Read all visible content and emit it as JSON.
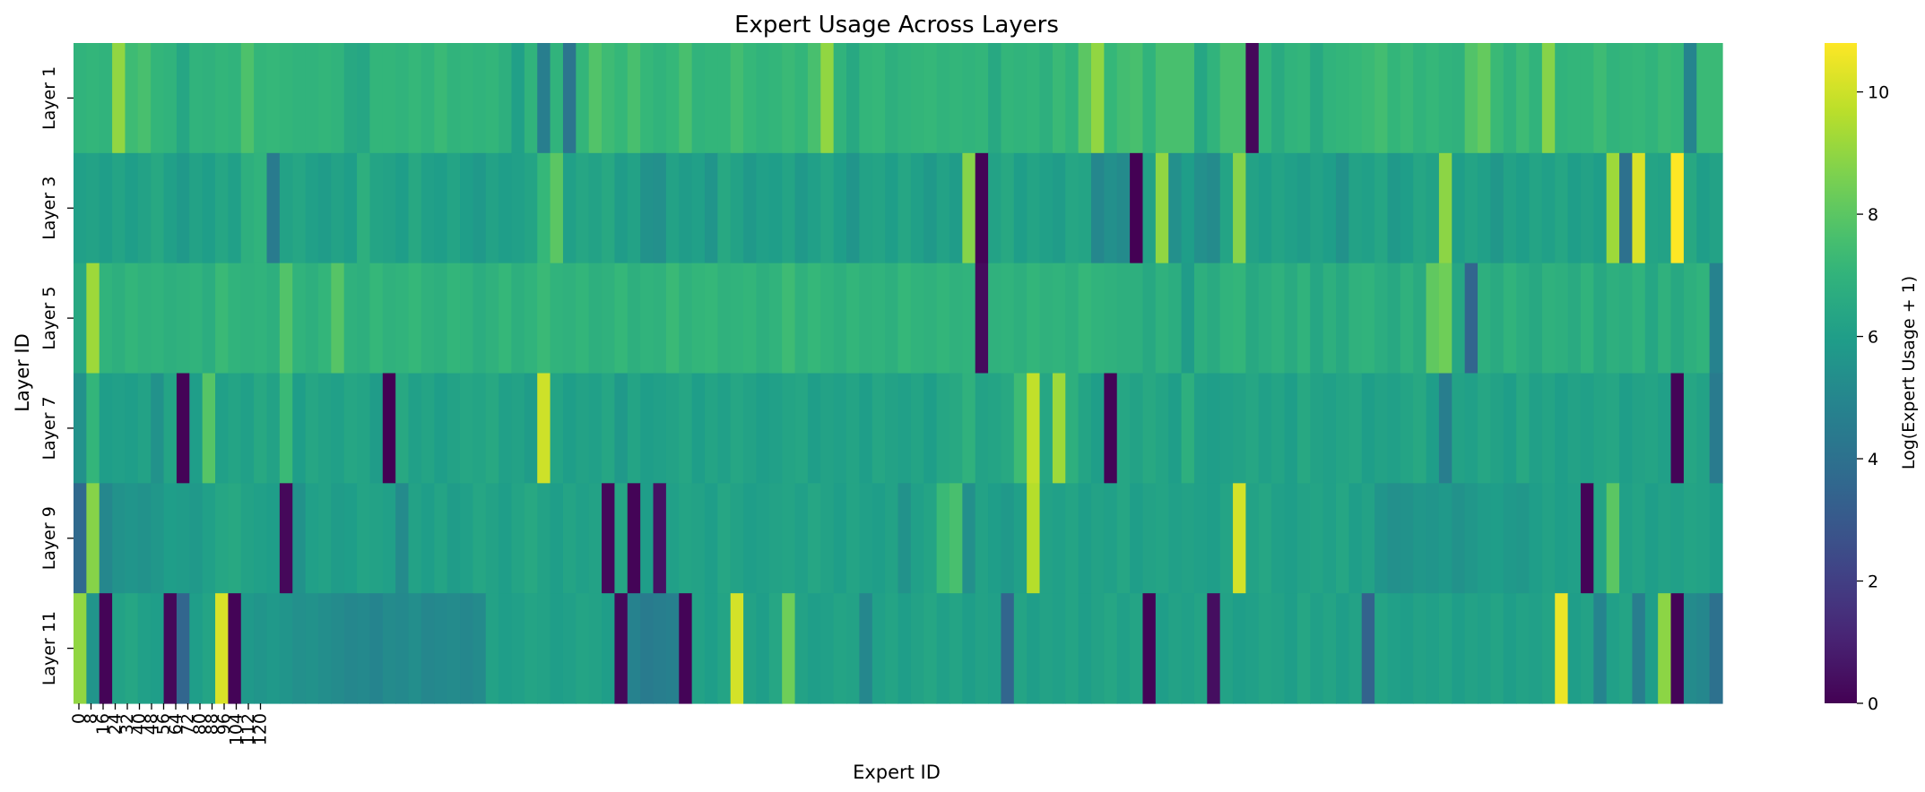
{
  "chart_data": {
    "type": "heatmap",
    "title": "Expert Usage Across Layers",
    "xlabel": "Expert ID",
    "ylabel": "Layer ID",
    "colorbar_label": "Log(Expert Usage + 1)",
    "colormap": "viridis",
    "vmin": 0,
    "vmax": 10.8,
    "colorbar_ticks": [
      0,
      2,
      4,
      6,
      8,
      10
    ],
    "x_tick_labels": [
      "0",
      "8",
      "16",
      "24",
      "32",
      "40",
      "48",
      "56",
      "64",
      "72",
      "80",
      "88",
      "96",
      "104",
      "112",
      "120"
    ],
    "y_tick_labels": [
      "Layer 1",
      "Layer 3",
      "Layer 5",
      "Layer 7",
      "Layer 9",
      "Layer 11"
    ],
    "n_experts": 128,
    "values": [
      [
        7.0,
        7.1,
        7.0,
        9.0,
        7.4,
        7.6,
        7.1,
        7.0,
        6.4,
        7.0,
        6.9,
        7.1,
        7.0,
        7.7,
        7.1,
        7.2,
        7.1,
        7.0,
        7.0,
        7.1,
        7.0,
        6.5,
        6.4,
        7.1,
        7.1,
        7.0,
        7.2,
        7.0,
        7.3,
        7.0,
        7.1,
        7.0,
        7.1,
        6.8,
        6.1,
        7.0,
        4.6,
        7.0,
        4.2,
        7.1,
        7.8,
        7.4,
        7.2,
        7.6,
        7.2,
        7.0,
        7.2,
        7.6,
        7.0,
        7.1,
        7.1,
        7.5,
        7.2,
        7.0,
        7.1,
        7.3,
        7.1,
        7.6,
        9.0,
        7.0,
        6.5,
        7.1,
        7.2,
        6.8,
        7.0,
        7.1,
        7.2,
        7.0,
        7.1,
        7.0,
        7.1,
        6.5,
        7.1,
        7.0,
        7.1,
        6.8,
        7.3,
        7.0,
        8.0,
        9.0,
        7.2,
        7.5,
        7.6,
        7.0,
        7.6,
        7.6,
        7.6,
        6.4,
        7.0,
        7.6,
        7.6,
        0.2,
        7.1,
        6.6,
        7.0,
        7.1,
        6.5,
        7.0,
        7.1,
        7.2,
        7.3,
        7.5,
        7.1,
        7.3,
        7.0,
        7.2,
        7.0,
        6.9,
        7.8,
        8.2,
        7.3,
        6.9,
        7.4,
        7.0,
        8.8,
        7.0,
        7.1,
        7.1,
        7.4,
        7.0,
        7.1,
        7.2,
        7.0,
        7.3,
        7.2,
        4.9,
        7.3,
        7.3
      ],
      [
        6.1,
        6.2,
        6.0,
        6.3,
        6.0,
        6.2,
        6.5,
        6.1,
        5.8,
        6.2,
        6.0,
        6.4,
        6.1,
        6.8,
        7.0,
        4.5,
        6.2,
        6.4,
        6.1,
        5.9,
        6.2,
        6.0,
        6.8,
        6.3,
        6.2,
        6.0,
        6.5,
        6.1,
        6.0,
        6.3,
        6.0,
        5.8,
        6.2,
        6.0,
        6.1,
        6.3,
        7.2,
        8.0,
        6.1,
        6.4,
        6.2,
        6.5,
        5.9,
        6.2,
        5.5,
        5.4,
        6.2,
        5.9,
        6.1,
        5.6,
        6.5,
        6.2,
        5.8,
        6.1,
        6.0,
        6.3,
        5.8,
        6.1,
        6.4,
        6.0,
        5.6,
        6.2,
        6.3,
        6.0,
        6.4,
        6.1,
        5.8,
        6.2,
        5.9,
        8.8,
        0.1,
        6.2,
        6.5,
        6.0,
        6.3,
        6.1,
        5.9,
        6.4,
        6.3,
        5.0,
        5.4,
        5.2,
        0.0,
        6.2,
        9.0,
        5.4,
        6.0,
        5.4,
        5.2,
        6.3,
        8.8,
        6.2,
        6.0,
        6.3,
        6.1,
        5.9,
        6.2,
        6.0,
        5.5,
        6.2,
        6.1,
        6.4,
        5.8,
        6.0,
        6.4,
        6.2,
        8.9,
        6.0,
        6.3,
        6.1,
        5.7,
        6.2,
        6.0,
        6.3,
        6.1,
        6.4,
        6.0,
        6.2,
        6.0,
        9.2,
        4.0,
        10.2,
        6.3,
        6.2,
        10.8,
        6.5,
        6.0,
        6.2
      ],
      [
        6.5,
        9.2,
        7.0,
        6.8,
        7.1,
        6.9,
        7.0,
        6.8,
        6.9,
        7.0,
        6.7,
        7.3,
        7.0,
        6.9,
        7.0,
        6.8,
        7.8,
        7.0,
        6.8,
        7.1,
        7.9,
        6.9,
        6.8,
        7.2,
        6.9,
        7.0,
        7.2,
        6.9,
        6.8,
        7.1,
        7.0,
        6.7,
        6.9,
        7.2,
        6.8,
        7.0,
        7.3,
        7.0,
        6.9,
        7.1,
        6.8,
        6.9,
        7.2,
        6.8,
        7.0,
        6.9,
        7.3,
        6.9,
        7.1,
        7.2,
        6.9,
        7.0,
        7.1,
        6.8,
        7.0,
        7.4,
        6.9,
        7.2,
        7.0,
        6.8,
        7.1,
        6.9,
        7.0,
        6.8,
        7.2,
        7.0,
        6.9,
        7.1,
        6.9,
        7.0,
        0.3,
        6.9,
        7.0,
        6.8,
        7.1,
        6.9,
        7.0,
        6.8,
        7.2,
        7.0,
        6.9,
        6.8,
        6.8,
        6.5,
        6.9,
        6.7,
        5.9,
        6.8,
        6.6,
        7.0,
        7.1,
        6.5,
        6.7,
        6.9,
        6.6,
        7.0,
        6.4,
        6.8,
        6.5,
        6.9,
        7.0,
        6.7,
        6.5,
        6.9,
        6.6,
        8.1,
        8.4,
        6.4,
        3.5,
        6.8,
        6.6,
        7.0,
        6.7,
        6.5,
        6.9,
        6.8,
        6.6,
        7.0,
        6.5,
        6.8,
        6.7,
        7.0,
        6.4,
        6.9,
        6.5,
        6.8,
        7.0,
        4.8
      ],
      [
        5.5,
        7.1,
        6.0,
        6.1,
        6.0,
        6.2,
        5.5,
        6.3,
        0.1,
        6.0,
        7.9,
        6.1,
        6.3,
        6.1,
        6.5,
        6.2,
        7.3,
        6.0,
        6.4,
        6.2,
        6.1,
        6.4,
        6.3,
        5.9,
        0.0,
        6.5,
        6.1,
        6.3,
        6.0,
        6.2,
        6.4,
        6.3,
        6.5,
        6.1,
        6.2,
        5.9,
        10.0,
        6.3,
        6.0,
        6.2,
        6.1,
        6.4,
        5.8,
        6.3,
        6.0,
        6.1,
        6.2,
        6.4,
        6.0,
        6.3,
        6.1,
        6.4,
        6.2,
        6.0,
        6.1,
        6.3,
        6.4,
        6.0,
        6.2,
        6.1,
        6.3,
        6.0,
        6.4,
        6.2,
        6.1,
        6.3,
        6.0,
        6.4,
        6.5,
        6.9,
        6.2,
        6.3,
        6.5,
        7.4,
        9.8,
        6.4,
        9.2,
        6.8,
        6.3,
        6.0,
        0.1,
        6.4,
        6.2,
        6.5,
        6.3,
        6.0,
        6.8,
        6.1,
        6.0,
        6.1,
        6.2,
        6.4,
        6.1,
        6.3,
        6.0,
        6.5,
        6.2,
        6.1,
        6.3,
        6.4,
        6.0,
        6.2,
        6.1,
        6.3,
        6.5,
        6.0,
        4.6,
        6.2,
        6.1,
        6.4,
        6.2,
        6.0,
        6.5,
        6.1,
        6.3,
        6.0,
        6.2,
        6.1,
        6.3,
        6.4,
        6.0,
        6.2,
        6.3,
        6.1,
        0.1,
        6.4,
        6.2,
        4.5
      ],
      [
        3.7,
        8.8,
        5.0,
        5.5,
        5.6,
        5.5,
        5.7,
        6.0,
        5.9,
        5.8,
        6.1,
        6.4,
        6.5,
        6.2,
        6.1,
        6.0,
        0.2,
        5.5,
        6.1,
        6.2,
        5.9,
        6.0,
        6.3,
        6.2,
        6.1,
        5.2,
        6.2,
        6.0,
        6.3,
        5.9,
        6.1,
        6.4,
        6.2,
        6.0,
        6.3,
        6.5,
        6.2,
        6.0,
        6.3,
        6.1,
        6.2,
        0.2,
        6.4,
        0.1,
        6.0,
        0.5,
        6.1,
        6.3,
        6.2,
        6.0,
        6.4,
        6.2,
        6.0,
        6.1,
        6.2,
        6.3,
        6.1,
        6.4,
        6.2,
        6.0,
        6.3,
        6.1,
        6.0,
        6.2,
        5.5,
        6.1,
        6.3,
        7.3,
        7.6,
        5.4,
        6.2,
        6.0,
        5.8,
        6.1,
        9.6,
        6.2,
        6.1,
        6.3,
        6.0,
        6.2,
        6.1,
        6.4,
        6.0,
        6.2,
        6.3,
        6.1,
        6.2,
        6.1,
        6.0,
        6.3,
        10.1,
        6.2,
        6.4,
        6.1,
        6.0,
        6.2,
        6.3,
        6.1,
        6.4,
        6.0,
        6.2,
        5.6,
        5.4,
        5.5,
        5.7,
        5.6,
        5.8,
        5.5,
        5.7,
        5.9,
        6.0,
        5.8,
        5.7,
        6.0,
        6.2,
        6.0,
        6.1,
        0.1,
        6.3,
        8.0,
        6.1,
        6.3,
        6.0,
        6.2,
        6.1,
        6.3,
        6.2,
        6.0
      ],
      [
        9.0,
        5.6,
        0.1,
        6.2,
        6.4,
        6.1,
        6.0,
        0.2,
        3.5,
        6.0,
        6.3,
        10.2,
        0.1,
        5.8,
        5.6,
        5.8,
        5.6,
        5.4,
        5.5,
        5.3,
        5.2,
        5.0,
        5.1,
        4.9,
        5.2,
        5.1,
        5.3,
        5.0,
        5.1,
        5.2,
        5.0,
        5.2,
        6.2,
        6.0,
        6.1,
        6.3,
        6.2,
        6.0,
        6.1,
        6.3,
        6.2,
        6.0,
        0.2,
        4.8,
        4.5,
        4.6,
        4.7,
        0.1,
        6.2,
        6.0,
        6.3,
        10.1,
        6.2,
        6.0,
        6.4,
        8.4,
        6.2,
        6.0,
        6.1,
        6.3,
        6.2,
        5.0,
        6.1,
        6.3,
        6.0,
        6.2,
        6.4,
        6.1,
        6.3,
        6.0,
        6.2,
        6.1,
        3.5,
        6.3,
        6.0,
        6.2,
        6.1,
        6.3,
        6.0,
        6.2,
        6.4,
        6.1,
        6.3,
        0.1,
        6.0,
        6.2,
        6.1,
        6.3,
        0.4,
        6.2,
        6.0,
        6.1,
        6.3,
        6.2,
        6.0,
        6.4,
        6.1,
        6.3,
        6.0,
        6.2,
        3.4,
        6.3,
        6.1,
        6.0,
        6.2,
        6.1,
        6.3,
        6.0,
        6.2,
        6.1,
        6.3,
        6.0,
        6.2,
        6.1,
        6.3,
        10.5,
        6.0,
        6.2,
        4.9,
        6.1,
        6.3,
        4.6,
        6.0,
        8.9,
        0.1,
        5.2,
        5.0,
        4.0
      ]
    ]
  }
}
